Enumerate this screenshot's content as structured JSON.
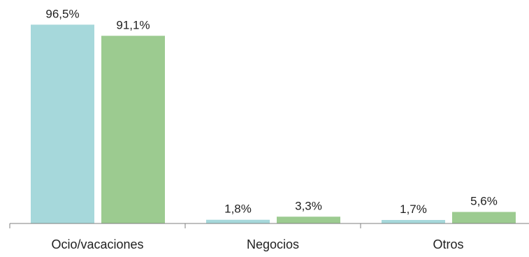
{
  "colors": {
    "series_a": "#A6D8DB",
    "series_b": "#9CCB90",
    "axis": "#7F7F7F",
    "text": "#1F1F1F"
  },
  "chart_data": {
    "type": "bar",
    "title": "",
    "xlabel": "",
    "ylabel": "",
    "categories": [
      "Ocio/vacaciones",
      "Negocios",
      "Otros"
    ],
    "series": [
      {
        "color": "#A6D8DB",
        "values": [
          96.5,
          1.8,
          1.7
        ],
        "labels": [
          "96,5%",
          "1,8%",
          "1,7%"
        ]
      },
      {
        "color": "#9CCB90",
        "values": [
          91.1,
          3.3,
          5.6
        ],
        "labels": [
          "91,1%",
          "3,3%",
          "5,6%"
        ]
      }
    ],
    "ylim": [
      0,
      100
    ],
    "grid": false,
    "legend": "none"
  }
}
